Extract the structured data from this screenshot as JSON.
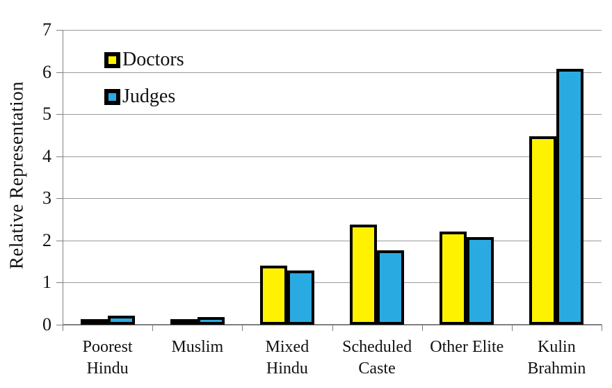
{
  "chart_data": {
    "type": "bar",
    "title": "",
    "ylabel": "Relative Representation",
    "xlabel": "",
    "ylim": [
      0,
      7
    ],
    "yticks": [
      0,
      1,
      2,
      3,
      4,
      5,
      6,
      7
    ],
    "grid": true,
    "legend_position": "top-left inside plot area",
    "categories": [
      "Poorest Hindu",
      "Muslim",
      "Mixed Hindu",
      "Scheduled Caste",
      "Other Elite",
      "Kulin Brahmin"
    ],
    "category_label_lines": [
      [
        "Poorest",
        "Hindu"
      ],
      [
        "Muslim"
      ],
      [
        "Mixed",
        "Hindu"
      ],
      [
        "Scheduled",
        "Caste"
      ],
      [
        "Other Elite"
      ],
      [
        "Kulin",
        "Brahmin"
      ]
    ],
    "series": [
      {
        "name": "Doctors",
        "color": "#FFF200",
        "values": [
          0.1,
          0.14,
          1.4,
          2.38,
          2.21,
          4.48
        ]
      },
      {
        "name": "Judges",
        "color": "#29ABE2",
        "values": [
          0.22,
          0.18,
          1.28,
          1.77,
          2.08,
          6.08
        ]
      }
    ],
    "colors": {
      "bar_border": "#000000",
      "gridline": "#9A9A9A",
      "axis": "#7F7F7F",
      "text": "#111111",
      "background": "#FFFFFF"
    }
  }
}
